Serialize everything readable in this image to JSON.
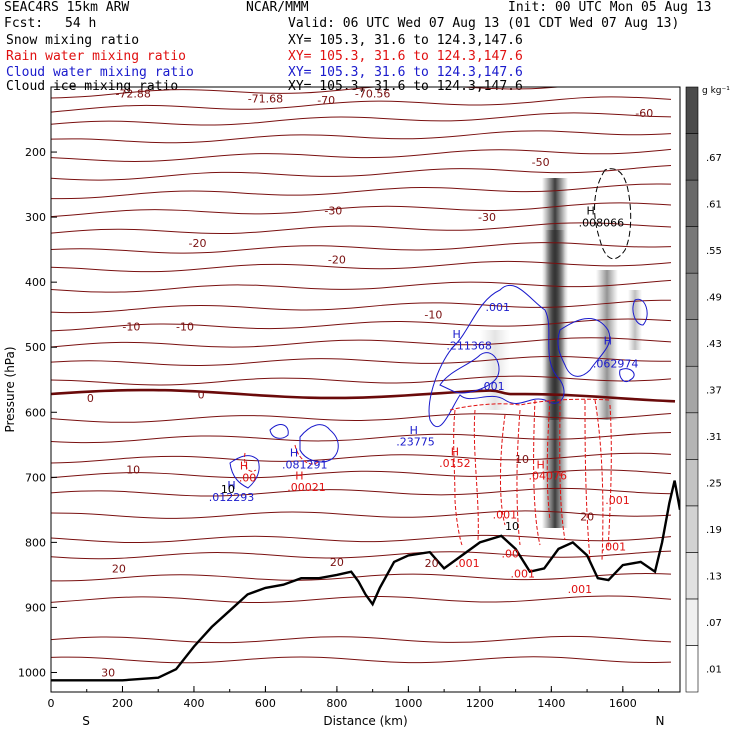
{
  "header": {
    "model": "SEAC4RS 15km ARW",
    "org": "NCAR/MMM",
    "init": "Init: 00 UTC Mon 05 Aug 13",
    "fcst_label": "Fcst:",
    "fcst_value": "54 h",
    "valid": "Valid: 06 UTC Wed 07 Aug 13 (01 CDT Wed 07 Aug 13)",
    "fields": [
      {
        "label": "Snow mixing ratio",
        "xy": "XY= 105.3, 31.6 to 124.3,147.6",
        "color": "#000000"
      },
      {
        "label": "Rain water mixing ratio",
        "xy": "XY= 105.3, 31.6 to 124.3,147.6",
        "color": "#e01010"
      },
      {
        "label": "Cloud water mixing ratio",
        "xy": "XY= 105.3, 31.6 to 124.3,147.6",
        "color": "#1a1acc"
      },
      {
        "label": "Cloud ice mixing ratio",
        "xy": "XY= 105.3, 31.6 to 124.3,147.6",
        "color": "#000000"
      }
    ]
  },
  "chart_data": {
    "type": "contour",
    "xlabel": "Distance (km)",
    "ylabel": "Pressure (hPa)",
    "xlim": [
      0,
      1760
    ],
    "ylim": [
      100,
      1030
    ],
    "x_ticks": [
      0,
      200,
      400,
      600,
      800,
      1000,
      1200,
      1400,
      1600
    ],
    "y_ticks": [
      200,
      300,
      400,
      500,
      600,
      700,
      800,
      900,
      1000
    ],
    "x_end_labels": {
      "left": "S",
      "right": "N"
    },
    "colorbar": {
      "unit": "g kg⁻¹",
      "levels": [
        ".01",
        ".07",
        ".13",
        ".19",
        ".25",
        ".31",
        ".37",
        ".43",
        ".49",
        ".55",
        ".61",
        ".67"
      ]
    },
    "temperature_labels": [
      {
        "text": "-72.88",
        "x": 230,
        "p": 110
      },
      {
        "text": "-71.68",
        "x": 600,
        "p": 118
      },
      {
        "text": "-70",
        "x": 770,
        "p": 120
      },
      {
        "text": "-70.56",
        "x": 900,
        "p": 110
      },
      {
        "text": "-60",
        "x": 1660,
        "p": 140
      },
      {
        "text": "-50",
        "x": 1370,
        "p": 215
      },
      {
        "text": "-30",
        "x": 790,
        "p": 290
      },
      {
        "text": "-30",
        "x": 1220,
        "p": 300
      },
      {
        "text": "-20",
        "x": 410,
        "p": 340
      },
      {
        "text": "-20",
        "x": 800,
        "p": 365
      },
      {
        "text": "-10",
        "x": 225,
        "p": 468
      },
      {
        "text": "-10",
        "x": 375,
        "p": 468
      },
      {
        "text": "-10",
        "x": 1070,
        "p": 450
      },
      {
        "text": "0",
        "x": 110,
        "p": 578
      },
      {
        "text": "0",
        "x": 420,
        "p": 573
      },
      {
        "text": "10",
        "x": 230,
        "p": 688
      },
      {
        "text": "10",
        "x": 1318,
        "p": 672
      },
      {
        "text": "20",
        "x": 190,
        "p": 840
      },
      {
        "text": "20",
        "x": 800,
        "p": 830
      },
      {
        "text": "20",
        "x": 1065,
        "p": 832
      },
      {
        "text": "20",
        "x": 1500,
        "p": 760
      },
      {
        "text": "30",
        "x": 160,
        "p": 1000
      }
    ],
    "field_labels": [
      {
        "text": ".001",
        "x": 1250,
        "p": 438,
        "color": "#1a1acc"
      },
      {
        "text": "H",
        "x": 1135,
        "p": 480,
        "color": "#1a1acc"
      },
      {
        "text": ".211368",
        "x": 1170,
        "p": 497,
        "color": "#1a1acc"
      },
      {
        "text": ".001",
        "x": 1235,
        "p": 560,
        "color": "#1a1acc"
      },
      {
        "text": "H",
        "x": 1558,
        "p": 490,
        "color": "#1a1acc"
      },
      {
        "text": ".062974",
        "x": 1580,
        "p": 525,
        "color": "#1a1acc"
      },
      {
        "text": "H",
        "x": 1015,
        "p": 627,
        "color": "#1a1acc"
      },
      {
        "text": ".23775",
        "x": 1020,
        "p": 645,
        "color": "#1a1acc"
      },
      {
        "text": "H",
        "x": 680,
        "p": 662,
        "color": "#1a1acc"
      },
      {
        "text": ".081291",
        "x": 710,
        "p": 680,
        "color": "#1a1acc"
      },
      {
        "text": "H",
        "x": 505,
        "p": 712,
        "color": "#1a1acc"
      },
      {
        "text": ".012293",
        "x": 505,
        "p": 730,
        "color": "#1a1acc"
      },
      {
        "text": "H",
        "x": 1130,
        "p": 660,
        "color": "#e01010"
      },
      {
        "text": ".0152",
        "x": 1130,
        "p": 678,
        "color": "#e01010"
      },
      {
        "text": "H",
        "x": 695,
        "p": 697,
        "color": "#e01010"
      },
      {
        "text": ".00021",
        "x": 715,
        "p": 715,
        "color": "#e01010"
      },
      {
        "text": "H",
        "x": 540,
        "p": 682,
        "color": "#e01010"
      },
      {
        "text": ".00",
        "x": 550,
        "p": 700,
        "color": "#e01010"
      },
      {
        "text": "H",
        "x": 1370,
        "p": 680,
        "color": "#e01010"
      },
      {
        "text": ".04076",
        "x": 1390,
        "p": 697,
        "color": "#e01010"
      },
      {
        "text": ".001",
        "x": 1585,
        "p": 735,
        "color": "#e01010"
      },
      {
        "text": ".001",
        "x": 1270,
        "p": 757,
        "color": "#e01010"
      },
      {
        "text": ".001",
        "x": 1575,
        "p": 806,
        "color": "#e01010"
      },
      {
        "text": ".00",
        "x": 1285,
        "p": 817,
        "color": "#e01010"
      },
      {
        "text": ".001",
        "x": 1165,
        "p": 832,
        "color": "#e01010"
      },
      {
        "text": ".001",
        "x": 1320,
        "p": 848,
        "color": "#e01010"
      },
      {
        "text": ".001",
        "x": 1480,
        "p": 872,
        "color": "#e01010"
      },
      {
        "text": "H",
        "x": 1510,
        "p": 290,
        "color": "#000000"
      },
      {
        "text": ".008066",
        "x": 1540,
        "p": 308,
        "color": "#000000"
      },
      {
        "text": "10",
        "x": 495,
        "p": 718,
        "color": "#000000"
      },
      {
        "text": "10",
        "x": 1290,
        "p": 775,
        "color": "#000000"
      }
    ],
    "terrain_pressure": [
      [
        0,
        1012
      ],
      [
        200,
        1012
      ],
      [
        300,
        1008
      ],
      [
        350,
        995
      ],
      [
        400,
        960
      ],
      [
        450,
        930
      ],
      [
        500,
        905
      ],
      [
        550,
        880
      ],
      [
        600,
        870
      ],
      [
        650,
        865
      ],
      [
        700,
        855
      ],
      [
        750,
        855
      ],
      [
        800,
        850
      ],
      [
        840,
        845
      ],
      [
        860,
        860
      ],
      [
        880,
        880
      ],
      [
        900,
        895
      ],
      [
        920,
        870
      ],
      [
        960,
        830
      ],
      [
        1000,
        820
      ],
      [
        1060,
        815
      ],
      [
        1100,
        840
      ],
      [
        1150,
        820
      ],
      [
        1200,
        800
      ],
      [
        1260,
        790
      ],
      [
        1300,
        810
      ],
      [
        1340,
        845
      ],
      [
        1380,
        840
      ],
      [
        1420,
        810
      ],
      [
        1460,
        800
      ],
      [
        1500,
        820
      ],
      [
        1530,
        855
      ],
      [
        1560,
        858
      ],
      [
        1600,
        835
      ],
      [
        1650,
        830
      ],
      [
        1690,
        845
      ],
      [
        1710,
        800
      ],
      [
        1730,
        740
      ],
      [
        1745,
        705
      ],
      [
        1760,
        750
      ]
    ]
  }
}
